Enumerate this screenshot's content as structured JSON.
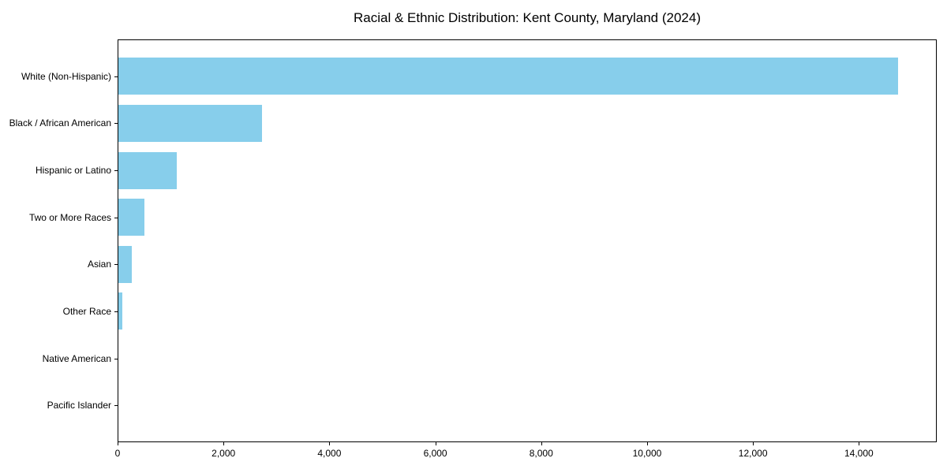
{
  "title": "Racial & Ethnic Distribution: Kent County, Maryland (2024)",
  "colors": {
    "bar": "#87CEEB",
    "axis": "#000000",
    "background": "#ffffff",
    "text": "#000000"
  },
  "chart_data": {
    "type": "bar",
    "orientation": "horizontal",
    "title": "Racial & Ethnic Distribution: Kent County, Maryland (2024)",
    "xlabel": "",
    "ylabel": "",
    "categories": [
      "White (Non-Hispanic)",
      "Black / African American",
      "Hispanic or Latino",
      "Two or More Races",
      "Asian",
      "Other Race",
      "Native American",
      "Pacific Islander"
    ],
    "values": [
      14730,
      2715,
      1105,
      495,
      255,
      70,
      0,
      0
    ],
    "xlim": [
      0,
      15470
    ],
    "x_ticks": [
      0,
      2000,
      4000,
      6000,
      8000,
      10000,
      12000,
      14000
    ],
    "x_tick_labels": [
      "0",
      "2,000",
      "4,000",
      "6,000",
      "8,000",
      "10,000",
      "12,000",
      "14,000"
    ],
    "bar_color": "#87CEEB",
    "grid": false,
    "legend": "none"
  }
}
